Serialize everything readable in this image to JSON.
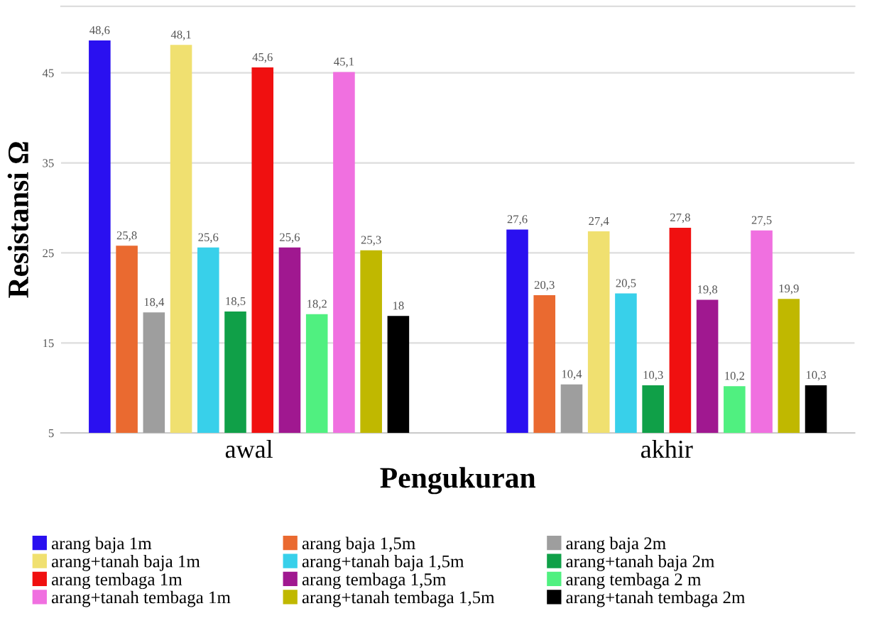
{
  "chart_data": {
    "type": "bar",
    "xlabel": "Pengukuran",
    "ylabel": "Resistansi Ω",
    "categories": [
      "awal",
      "akhir"
    ],
    "series": [
      {
        "name": "arang baja 1m",
        "color": "#2a10f0",
        "values": [
          48.6,
          27.6
        ],
        "value_labels": [
          "48,6",
          "27,6"
        ]
      },
      {
        "name": "arang baja 1,5m",
        "color": "#ea6a30",
        "values": [
          25.8,
          20.3
        ],
        "value_labels": [
          "25,8",
          "20,3"
        ]
      },
      {
        "name": "arang baja 2m",
        "color": "#9e9e9e",
        "values": [
          18.4,
          10.4
        ],
        "value_labels": [
          "18,4",
          "10,4"
        ]
      },
      {
        "name": "arang+tanah baja 1m",
        "color": "#f0e070",
        "values": [
          48.1,
          27.4
        ],
        "value_labels": [
          "48,1",
          "27,4"
        ]
      },
      {
        "name": "arang+tanah baja 1,5m",
        "color": "#38d0ea",
        "values": [
          25.6,
          20.5
        ],
        "value_labels": [
          "25,6",
          "20,5"
        ]
      },
      {
        "name": "arang+tanah baja 2m",
        "color": "#10a048",
        "values": [
          18.5,
          10.3
        ],
        "value_labels": [
          "18,5",
          "10,3"
        ]
      },
      {
        "name": "arang tembaga 1m",
        "color": "#f01010",
        "values": [
          45.6,
          27.8
        ],
        "value_labels": [
          "45,6",
          "27,8"
        ]
      },
      {
        "name": "arang tembaga 1,5m",
        "color": "#a01890",
        "values": [
          25.6,
          19.8
        ],
        "value_labels": [
          "25,6",
          "19,8"
        ]
      },
      {
        "name": "arang tembaga 2 m",
        "color": "#50f080",
        "values": [
          18.2,
          10.2
        ],
        "value_labels": [
          "18,2",
          "10,2"
        ]
      },
      {
        "name": "arang+tanah tembaga 1m",
        "color": "#f070e0",
        "values": [
          45.1,
          27.5
        ],
        "value_labels": [
          "45,1",
          "27,5"
        ]
      },
      {
        "name": "arang+tanah tembaga 1,5m",
        "color": "#c0b800",
        "values": [
          25.3,
          19.9
        ],
        "value_labels": [
          "25,3",
          "19,9"
        ]
      },
      {
        "name": "arang+tanah tembaga 2m",
        "color": "#000000",
        "values": [
          18,
          10.3
        ],
        "value_labels": [
          "18",
          "10,3"
        ]
      }
    ],
    "ylim": [
      5,
      52.4
    ],
    "yticks": [
      5,
      15,
      25,
      35,
      45
    ],
    "grid": "y",
    "legend": "bottom"
  }
}
